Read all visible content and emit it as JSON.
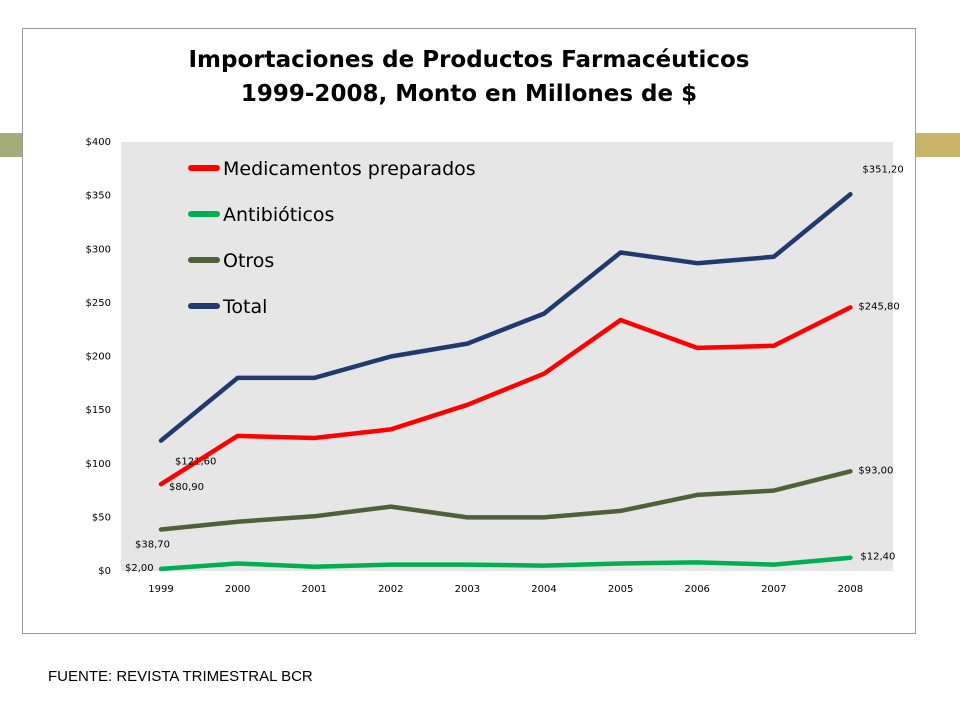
{
  "source_note": "FUENTE: REVISTA TRIMESTRAL BCR",
  "chart_data": {
    "type": "line",
    "title_lines": [
      "Importaciones de Productos Farmacéuticos",
      "1999-2008, Monto en Millones de $"
    ],
    "xlabel": "",
    "ylabel": "",
    "x": [
      "1999",
      "2000",
      "2001",
      "2002",
      "2003",
      "2004",
      "2005",
      "2006",
      "2007",
      "2008"
    ],
    "ylim": [
      0,
      400
    ],
    "yticks": [
      0,
      50,
      100,
      150,
      200,
      250,
      300,
      350,
      400
    ],
    "ytick_labels": [
      "$0",
      "$50",
      "$100",
      "$150",
      "$200",
      "$250",
      "$300",
      "$350",
      "$400"
    ],
    "grid": false,
    "legend_position": "top-left inside",
    "series": [
      {
        "name": "Medicamentos preparados",
        "color": "#ff0000",
        "values": [
          80.9,
          126,
          124,
          132,
          155,
          184,
          234,
          208,
          210,
          245.8
        ],
        "labels": [
          {
            "index": 0,
            "text": "$80,90"
          },
          {
            "index": 9,
            "text": "$245,80"
          }
        ]
      },
      {
        "name": "Antibióticos",
        "color": "#00b050",
        "values": [
          2.0,
          7,
          4,
          6,
          6,
          5,
          7,
          8,
          6,
          12.4
        ],
        "labels": [
          {
            "index": 0,
            "text": "$2,00"
          },
          {
            "index": 9,
            "text": "$12,40"
          }
        ]
      },
      {
        "name": "Otros",
        "color": "#4f6138",
        "values": [
          38.7,
          46,
          51,
          60,
          50,
          50,
          56,
          71,
          75,
          93.0
        ],
        "labels": [
          {
            "index": 0,
            "text": "$38,70"
          },
          {
            "index": 9,
            "text": "$93,00"
          }
        ]
      },
      {
        "name": "Total",
        "color": "#203a70",
        "values": [
          121.6,
          180,
          180,
          200,
          212,
          240,
          297,
          287,
          293,
          351.2
        ],
        "labels": [
          {
            "index": 0,
            "text": "$121,60"
          },
          {
            "index": 9,
            "text": "$351,20"
          }
        ]
      }
    ]
  }
}
